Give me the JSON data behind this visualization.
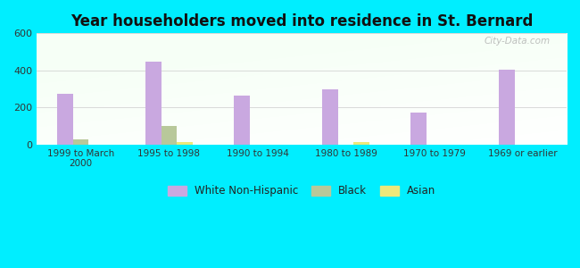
{
  "title": "Year householders moved into residence in St. Bernard",
  "categories": [
    "1999 to March\n2000",
    "1995 to 1998",
    "1990 to 1994",
    "1980 to 1989",
    "1970 to 1979",
    "1969 or earlier"
  ],
  "white": [
    275,
    447,
    265,
    298,
    175,
    403
  ],
  "black": [
    30,
    103,
    0,
    0,
    0,
    0
  ],
  "asian": [
    0,
    13,
    0,
    13,
    0,
    0
  ],
  "white_color": "#c9a8e0",
  "black_color": "#b8c89a",
  "asian_color": "#ede87a",
  "bg_color": "#00eeff",
  "ylim": [
    0,
    600
  ],
  "yticks": [
    0,
    200,
    400,
    600
  ],
  "bar_width": 0.18,
  "watermark": "City-Data.com",
  "grid_color": "#cccccc",
  "title_color": "#111111"
}
